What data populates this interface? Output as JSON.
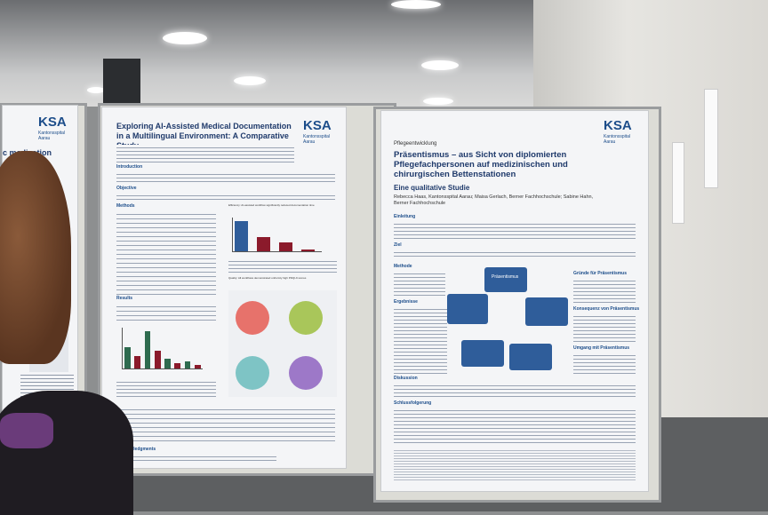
{
  "left_poster": {
    "logo": "KSA",
    "logo_sub": "Kantonsspital\nAarau",
    "heading": "c medication"
  },
  "center_poster": {
    "title": "Exploring AI-Assisted Medical Documentation in a Multilingual Environment: A Comparative Study",
    "logo": "KSA",
    "logo_sub": "Kantonsspital\nAarau",
    "sections": [
      "Introduction",
      "Objective",
      "Methods",
      "Results",
      "Acknowledgments"
    ],
    "figure_caption_1": "Efficiency: AI-assisted workflow significantly reduced documentation time",
    "figure_caption_2": "Quality: All workflows demonstrated uniformly high PDQI-9 scores"
  },
  "right_poster": {
    "logo": "KSA",
    "logo_sub": "Kantonsspital\nAarau",
    "kicker": "Pflegeentwicklung",
    "title": "Präsentismus – aus Sicht von diplomierten Pflegefachpersonen auf medizinischen und chirurgischen Bettenstationen",
    "subtitle": "Eine qualitative Studie",
    "authors": "Rebecca Haas, Kantonsspital Aarau; Maisa Gerlach, Berner Fachhochschule; Sabine Hahn, Berner Fachhochschule",
    "sections": [
      "Einleitung",
      "Ziel",
      "Methode",
      "Ergebnisse",
      "Diskussion",
      "Schlussfolgerung"
    ],
    "diagram_center": "Präsentismus",
    "side_heading_1": "Gründe für Präsentismus",
    "side_heading_2": "Konsequenz von Präsentismus",
    "side_heading_3": "Umgang mit Präsentismus"
  },
  "colors": {
    "ksa_blue": "#1c4d8a",
    "bar_dark_red": "#8b1a2b",
    "bar_green": "#2e6b4f",
    "bar_blue": "#2f5d9a"
  },
  "chart_data": [
    {
      "type": "bar",
      "series": [
        {
          "values": [
            30,
            14,
            9,
            2
          ]
        }
      ]
    },
    {
      "type": "bar",
      "series": [
        {
          "values": [
            24,
            14,
            42,
            20,
            11,
            6,
            8,
            4
          ]
        }
      ]
    }
  ]
}
